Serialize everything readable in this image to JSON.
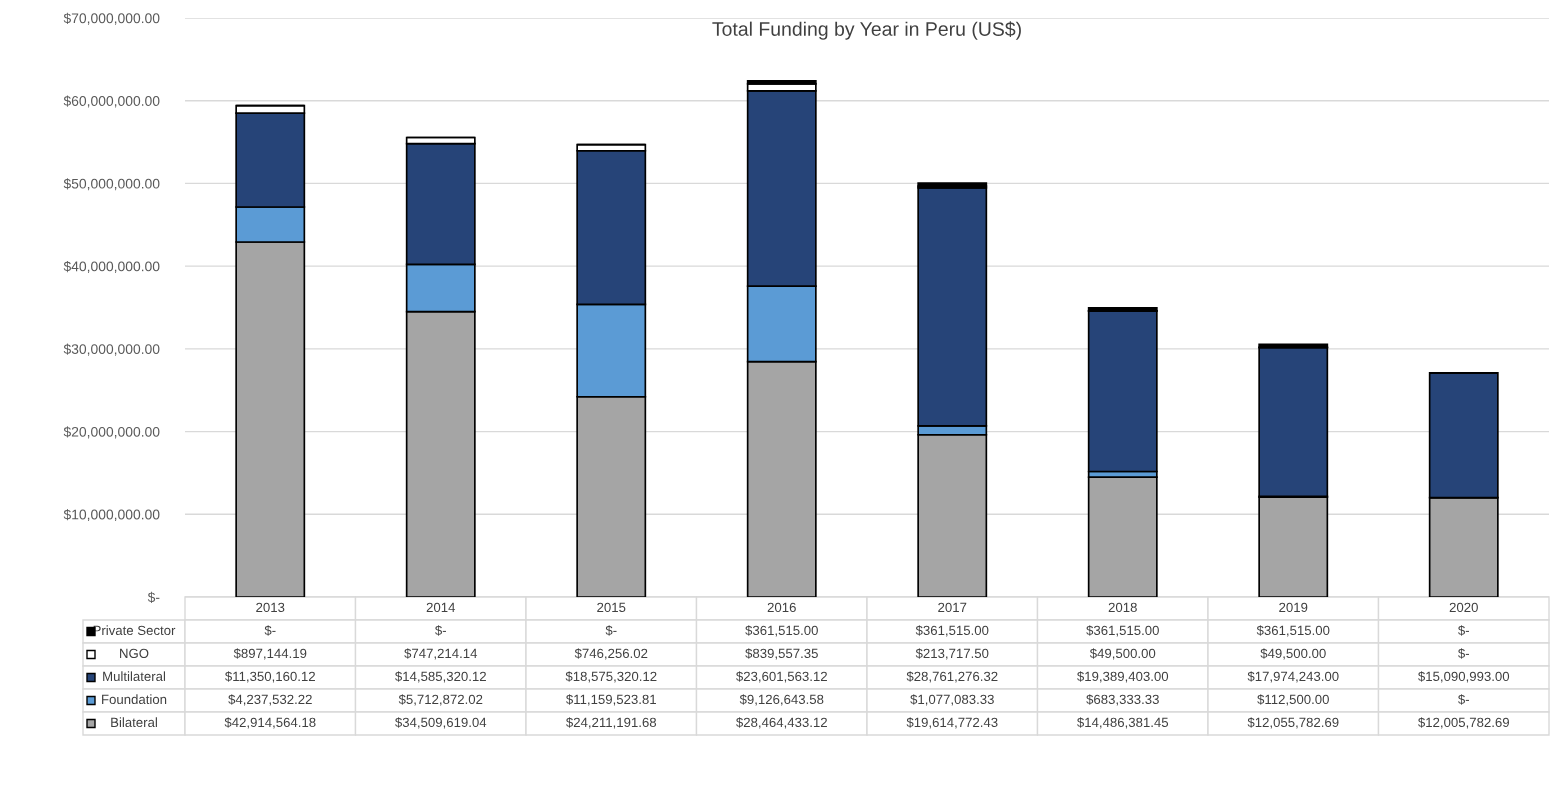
{
  "chart_data": {
    "type": "bar",
    "title": "Total Funding by Year in Peru (US$)",
    "stacked": true,
    "categories": [
      "2013",
      "2014",
      "2015",
      "2016",
      "2017",
      "2018",
      "2019",
      "2020"
    ],
    "series": [
      {
        "name": "Bilateral",
        "color": "#a5a5a5",
        "values": [
          42914564.18,
          34509619.04,
          24211191.68,
          28464433.12,
          19614772.43,
          14486381.45,
          12055782.69,
          12005782.69
        ],
        "value_labels": [
          "$42,914,564.18",
          "$34,509,619.04",
          "$24,211,191.68",
          "$28,464,433.12",
          "$19,614,772.43",
          "$14,486,381.45",
          "$12,055,782.69",
          "$12,005,782.69"
        ]
      },
      {
        "name": "Foundation",
        "color": "#5b9bd5",
        "values": [
          4237532.22,
          5712872.02,
          11159523.81,
          9126643.58,
          1077083.33,
          683333.33,
          112500.0,
          0
        ],
        "value_labels": [
          "$4,237,532.22",
          "$5,712,872.02",
          "$11,159,523.81",
          "$9,126,643.58",
          "$1,077,083.33",
          "$683,333.33",
          "$112,500.00",
          "$-"
        ]
      },
      {
        "name": "Multilateral",
        "color": "#264478",
        "values": [
          11350160.12,
          14585320.12,
          18575320.12,
          23601563.12,
          28761276.32,
          19389403.0,
          17974243.0,
          15090993.0
        ],
        "value_labels": [
          "$11,350,160.12",
          "$14,585,320.12",
          "$18,575,320.12",
          "$23,601,563.12",
          "$28,761,276.32",
          "$19,389,403.00",
          "$17,974,243.00",
          "$15,090,993.00"
        ]
      },
      {
        "name": "NGO",
        "color": "#ffffff",
        "values": [
          897144.19,
          747214.14,
          746256.02,
          839557.35,
          213717.5,
          49500.0,
          49500.0,
          0
        ],
        "value_labels": [
          "$897,144.19",
          "$747,214.14",
          "$746,256.02",
          "$839,557.35",
          "$213,717.50",
          "$49,500.00",
          "$49,500.00",
          "$-"
        ]
      },
      {
        "name": "Private Sector",
        "color": "#000000",
        "values": [
          0,
          0,
          0,
          361515.0,
          361515.0,
          361515.0,
          361515.0,
          0
        ],
        "value_labels": [
          "$-",
          "$-",
          "$-",
          "$361,515.00",
          "$361,515.00",
          "$361,515.00",
          "$361,515.00",
          "$-"
        ]
      }
    ],
    "ylim": [
      0,
      70000000
    ],
    "yticks": [
      {
        "value": 0,
        "label": "$-"
      },
      {
        "value": 10000000,
        "label": "$10,000,000.00"
      },
      {
        "value": 20000000,
        "label": "$20,000,000.00"
      },
      {
        "value": 30000000,
        "label": "$30,000,000.00"
      },
      {
        "value": 40000000,
        "label": "$40,000,000.00"
      },
      {
        "value": 50000000,
        "label": "$50,000,000.00"
      },
      {
        "value": 60000000,
        "label": "$60,000,000.00"
      },
      {
        "value": 70000000,
        "label": "$70,000,000.00"
      }
    ],
    "grid": "y",
    "legend": "bottom left"
  }
}
